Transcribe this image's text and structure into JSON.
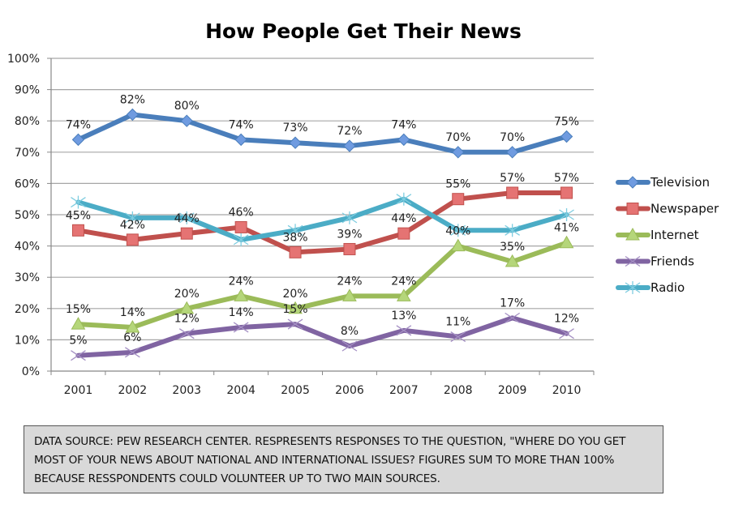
{
  "chart_data": {
    "type": "line",
    "title": "How People Get Their News",
    "xlabel": "",
    "ylabel": "",
    "categories": [
      "2001",
      "2002",
      "2003",
      "2004",
      "2005",
      "2006",
      "2007",
      "2008",
      "2009",
      "2010"
    ],
    "ylim": [
      0,
      100
    ],
    "yticks": [
      "0%",
      "10%",
      "20%",
      "30%",
      "40%",
      "50%",
      "60%",
      "70%",
      "80%",
      "90%",
      "100%"
    ],
    "grid": true,
    "legend_position": "right",
    "series": [
      {
        "name": "Television",
        "color": "#4a7ebb",
        "marker": "diamond",
        "values": [
          74,
          82,
          80,
          74,
          73,
          72,
          74,
          70,
          70,
          75
        ],
        "labels": [
          "74%",
          "82%",
          "80%",
          "74%",
          "73%",
          "72%",
          "74%",
          "70%",
          "70%",
          "75%"
        ]
      },
      {
        "name": "Newspaper",
        "color": "#c0504d",
        "marker": "square",
        "values": [
          45,
          42,
          44,
          46,
          38,
          39,
          44,
          55,
          57,
          57
        ],
        "labels": [
          "45%",
          "42%",
          "44%",
          "46%",
          "38%",
          "39%",
          "44%",
          "55%",
          "57%",
          "57%"
        ]
      },
      {
        "name": "Internet",
        "color": "#9bbb59",
        "marker": "triangle",
        "values": [
          15,
          14,
          20,
          24,
          20,
          24,
          24,
          40,
          35,
          41
        ],
        "labels": [
          "15%",
          "14%",
          "20%",
          "24%",
          "20%",
          "24%",
          "24%",
          "40%",
          "35%",
          "41%"
        ]
      },
      {
        "name": "Friends",
        "color": "#8064a2",
        "marker": "x",
        "values": [
          5,
          6,
          12,
          14,
          15,
          8,
          13,
          11,
          17,
          12
        ],
        "labels": [
          "5%",
          "6%",
          "12%",
          "14%",
          "15%",
          "8%",
          "13%",
          "11%",
          "17%",
          "12%"
        ]
      },
      {
        "name": "Radio",
        "color": "#4bacc6",
        "marker": "star",
        "values": [
          54,
          49,
          49,
          42,
          45,
          49,
          55,
          45,
          45,
          50
        ],
        "labels": []
      }
    ]
  },
  "note": {
    "text": "DATA SOURCE: PEW RESEARCH CENTER. RESPRESENTS RESPONSES TO THE QUESTION, \"WHERE DO YOU GET MOST OF YOUR NEWS ABOUT NATIONAL AND INTERNATIONAL ISSUES? FIGURES SUM TO MORE THAN 100% BECAUSE RESSPONDENTS COULD VOLUNTEER UP TO TWO MAIN SOURCES."
  }
}
